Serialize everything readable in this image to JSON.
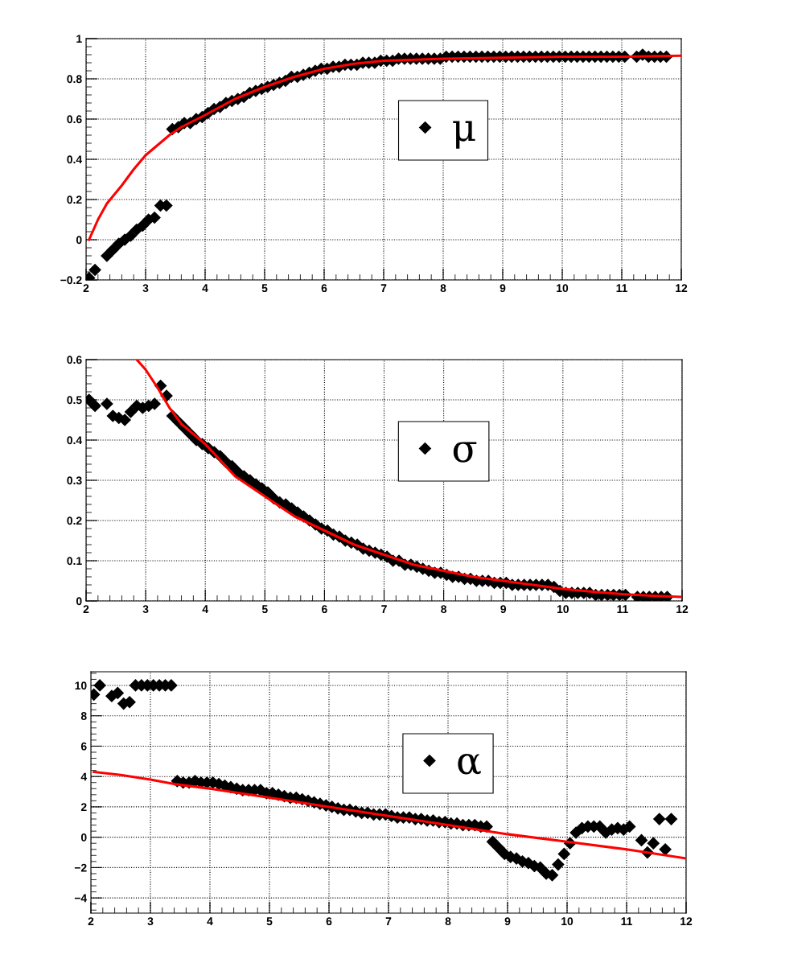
{
  "chart_data": [
    {
      "type": "scatter",
      "xlim": [
        2,
        12
      ],
      "xticks": [
        2,
        3,
        4,
        5,
        6,
        7,
        8,
        9,
        10,
        11,
        12
      ],
      "ylim": [
        -0.2,
        1
      ],
      "yticks": [
        {
          "value": -0.2,
          "label": "−0.2"
        },
        0,
        0.2,
        0.4,
        0.6,
        0.8,
        1
      ],
      "grid": true,
      "legend": "right",
      "series": [
        {
          "name": "μ",
          "color": "#000000",
          "marker": "diamond",
          "x": [
            2.05,
            2.15,
            2.35,
            2.45,
            2.55,
            2.65,
            2.75,
            2.85,
            2.95,
            3.05,
            3.15,
            3.25,
            3.35,
            3.45,
            3.55,
            3.65,
            3.75,
            3.85,
            3.95,
            4.05,
            4.15,
            4.25,
            4.35,
            4.45,
            4.55,
            4.65,
            4.75,
            4.85,
            4.95,
            5.05,
            5.15,
            5.25,
            5.35,
            5.45,
            5.55,
            5.65,
            5.75,
            5.85,
            5.95,
            6.05,
            6.15,
            6.25,
            6.35,
            6.45,
            6.55,
            6.65,
            6.75,
            6.85,
            6.95,
            7.05,
            7.15,
            7.25,
            7.35,
            7.45,
            7.55,
            7.65,
            7.75,
            7.85,
            7.95,
            8.05,
            8.15,
            8.25,
            8.35,
            8.45,
            8.55,
            8.65,
            8.75,
            8.85,
            8.95,
            9.05,
            9.15,
            9.25,
            9.35,
            9.45,
            9.55,
            9.65,
            9.75,
            9.85,
            9.95,
            10.05,
            10.15,
            10.25,
            10.35,
            10.45,
            10.55,
            10.65,
            10.75,
            10.85,
            10.95,
            11.05,
            11.25,
            11.35,
            11.45,
            11.55,
            11.65,
            11.75
          ],
          "values": [
            -0.19,
            -0.15,
            -0.08,
            -0.05,
            -0.02,
            0.0,
            0.02,
            0.05,
            0.07,
            0.1,
            0.11,
            0.17,
            0.17,
            0.55,
            0.56,
            0.58,
            0.58,
            0.6,
            0.61,
            0.63,
            0.65,
            0.66,
            0.68,
            0.69,
            0.7,
            0.71,
            0.73,
            0.74,
            0.75,
            0.76,
            0.77,
            0.78,
            0.79,
            0.81,
            0.81,
            0.82,
            0.83,
            0.84,
            0.85,
            0.85,
            0.86,
            0.86,
            0.87,
            0.87,
            0.87,
            0.88,
            0.88,
            0.88,
            0.89,
            0.89,
            0.89,
            0.9,
            0.9,
            0.9,
            0.9,
            0.9,
            0.9,
            0.9,
            0.9,
            0.91,
            0.91,
            0.91,
            0.91,
            0.91,
            0.91,
            0.91,
            0.91,
            0.91,
            0.91,
            0.91,
            0.91,
            0.91,
            0.91,
            0.91,
            0.91,
            0.91,
            0.91,
            0.91,
            0.91,
            0.91,
            0.91,
            0.91,
            0.91,
            0.91,
            0.91,
            0.91,
            0.91,
            0.91,
            0.91,
            0.91,
            0.91,
            0.92,
            0.91,
            0.91,
            0.91,
            0.91
          ]
        },
        {
          "type": "line",
          "color": "#ff0000",
          "line_style": "solid",
          "x": [
            2.05,
            2.2,
            2.35,
            2.6,
            2.8,
            3.0,
            3.4,
            3.6,
            4.0,
            4.5,
            5.0,
            5.5,
            6.0,
            6.5,
            7.0,
            8.0,
            9.0,
            10.0,
            11.0,
            12.0
          ],
          "values": [
            0.0,
            0.1,
            0.18,
            0.27,
            0.35,
            0.42,
            0.52,
            0.56,
            0.62,
            0.7,
            0.76,
            0.81,
            0.85,
            0.875,
            0.89,
            0.9,
            0.905,
            0.91,
            0.91,
            0.915
          ]
        }
      ]
    },
    {
      "type": "scatter",
      "xlim": [
        2,
        12
      ],
      "xticks": [
        2,
        3,
        4,
        5,
        6,
        7,
        8,
        9,
        10,
        11,
        12
      ],
      "ylim": [
        0,
        0.6
      ],
      "yticks": [
        0,
        0.1,
        0.2,
        0.3,
        0.4,
        0.5,
        0.6
      ],
      "grid": true,
      "legend": "right",
      "series": [
        {
          "name": "σ",
          "color": "#000000",
          "marker": "diamond",
          "x": [
            2.05,
            2.15,
            2.35,
            2.45,
            2.55,
            2.65,
            2.75,
            2.85,
            2.95,
            3.05,
            3.15,
            3.25,
            3.35,
            3.45,
            3.55,
            3.65,
            3.75,
            3.85,
            3.95,
            4.05,
            4.15,
            4.25,
            4.35,
            4.45,
            4.55,
            4.65,
            4.75,
            4.85,
            4.95,
            5.05,
            5.15,
            5.25,
            5.35,
            5.45,
            5.55,
            5.65,
            5.75,
            5.85,
            5.95,
            6.05,
            6.15,
            6.25,
            6.35,
            6.45,
            6.55,
            6.65,
            6.75,
            6.85,
            6.95,
            7.05,
            7.15,
            7.25,
            7.35,
            7.45,
            7.55,
            7.65,
            7.75,
            7.85,
            7.95,
            8.05,
            8.15,
            8.25,
            8.35,
            8.45,
            8.55,
            8.65,
            8.75,
            8.85,
            8.95,
            9.05,
            9.15,
            9.25,
            9.35,
            9.45,
            9.55,
            9.65,
            9.75,
            9.85,
            9.95,
            10.05,
            10.15,
            10.25,
            10.35,
            10.45,
            10.55,
            10.65,
            10.75,
            10.85,
            10.95,
            11.05,
            11.25,
            11.35,
            11.45,
            11.55,
            11.65,
            11.75
          ],
          "values": [
            0.5,
            0.485,
            0.49,
            0.46,
            0.455,
            0.45,
            0.47,
            0.485,
            0.48,
            0.485,
            0.49,
            0.535,
            0.51,
            0.46,
            0.445,
            0.43,
            0.415,
            0.4,
            0.39,
            0.38,
            0.37,
            0.36,
            0.345,
            0.335,
            0.32,
            0.31,
            0.3,
            0.29,
            0.28,
            0.27,
            0.255,
            0.245,
            0.24,
            0.23,
            0.22,
            0.21,
            0.2,
            0.19,
            0.18,
            0.175,
            0.165,
            0.16,
            0.15,
            0.145,
            0.14,
            0.13,
            0.125,
            0.12,
            0.115,
            0.11,
            0.1,
            0.1,
            0.09,
            0.09,
            0.085,
            0.08,
            0.075,
            0.07,
            0.07,
            0.065,
            0.06,
            0.06,
            0.055,
            0.055,
            0.05,
            0.05,
            0.05,
            0.045,
            0.045,
            0.045,
            0.04,
            0.04,
            0.04,
            0.04,
            0.04,
            0.04,
            0.04,
            0.035,
            0.025,
            0.02,
            0.02,
            0.02,
            0.02,
            0.02,
            0.015,
            0.015,
            0.015,
            0.015,
            0.015,
            0.015,
            0.01,
            0.01,
            0.01,
            0.01,
            0.01,
            0.01
          ]
        },
        {
          "type": "line",
          "color": "#ff0000",
          "line_style": "solid",
          "x": [
            2.85,
            3.0,
            3.2,
            3.4,
            3.6,
            4.0,
            4.5,
            5.0,
            5.5,
            6.0,
            6.5,
            7.0,
            7.5,
            8.0,
            8.5,
            9.0,
            9.5,
            10.0,
            10.5,
            11.0,
            11.5,
            12.0
          ],
          "values": [
            0.6,
            0.575,
            0.53,
            0.48,
            0.44,
            0.39,
            0.31,
            0.26,
            0.21,
            0.175,
            0.14,
            0.115,
            0.09,
            0.075,
            0.06,
            0.05,
            0.04,
            0.03,
            0.023,
            0.017,
            0.013,
            0.01
          ]
        }
      ]
    },
    {
      "type": "scatter",
      "xlim": [
        2,
        12
      ],
      "xticks": [
        2,
        3,
        4,
        5,
        6,
        7,
        8,
        9,
        10,
        11,
        12
      ],
      "ylim": [
        -5,
        10.9
      ],
      "yticks": [
        {
          "value": -4,
          "label": "−4"
        },
        {
          "value": -2,
          "label": "−2"
        },
        0,
        2,
        4,
        6,
        8,
        10
      ],
      "grid": true,
      "legend": "right",
      "series": [
        {
          "name": "α",
          "color": "#000000",
          "marker": "diamond",
          "x": [
            2.05,
            2.15,
            2.35,
            2.45,
            2.55,
            2.65,
            2.75,
            2.85,
            2.95,
            3.05,
            3.15,
            3.25,
            3.35,
            3.45,
            3.55,
            3.65,
            3.75,
            3.85,
            3.95,
            4.05,
            4.15,
            4.25,
            4.35,
            4.45,
            4.55,
            4.65,
            4.75,
            4.85,
            4.95,
            5.05,
            5.15,
            5.25,
            5.35,
            5.45,
            5.55,
            5.65,
            5.75,
            5.85,
            5.95,
            6.05,
            6.15,
            6.25,
            6.35,
            6.45,
            6.55,
            6.65,
            6.75,
            6.85,
            6.95,
            7.05,
            7.15,
            7.25,
            7.35,
            7.45,
            7.55,
            7.65,
            7.75,
            7.85,
            7.95,
            8.05,
            8.15,
            8.25,
            8.35,
            8.45,
            8.55,
            8.65,
            8.75,
            8.85,
            8.95,
            9.05,
            9.15,
            9.25,
            9.35,
            9.45,
            9.55,
            9.65,
            9.75,
            9.85,
            9.95,
            10.05,
            10.15,
            10.25,
            10.35,
            10.45,
            10.55,
            10.65,
            10.75,
            10.85,
            10.95,
            11.05,
            11.25,
            11.35,
            11.45,
            11.55,
            11.65,
            11.75
          ],
          "values": [
            9.4,
            10,
            9.3,
            9.5,
            8.8,
            8.9,
            10,
            10,
            10,
            10,
            10,
            10,
            10,
            3.7,
            3.6,
            3.6,
            3.7,
            3.6,
            3.6,
            3.6,
            3.5,
            3.4,
            3.3,
            3.2,
            3.1,
            3.1,
            3.1,
            3.1,
            2.9,
            2.9,
            2.8,
            2.7,
            2.6,
            2.6,
            2.5,
            2.4,
            2.3,
            2.2,
            2.1,
            2.0,
            1.9,
            1.8,
            1.8,
            1.7,
            1.6,
            1.6,
            1.5,
            1.5,
            1.5,
            1.4,
            1.3,
            1.3,
            1.3,
            1.2,
            1.2,
            1.1,
            1.1,
            1.0,
            1.0,
            0.9,
            0.9,
            0.8,
            0.8,
            0.8,
            0.7,
            0.7,
            -0.3,
            -0.7,
            -1.1,
            -1.3,
            -1.4,
            -1.6,
            -1.7,
            -1.9,
            -2.0,
            -2.4,
            -2.5,
            -1.8,
            -1.1,
            -0.4,
            0.3,
            0.6,
            0.7,
            0.7,
            0.7,
            0.3,
            0.5,
            0.6,
            0.5,
            0.7,
            -0.2,
            -1.0,
            -0.4,
            1.2,
            -0.8,
            1.2
          ]
        },
        {
          "type": "line",
          "color": "#ff0000",
          "line_style": "solid",
          "x": [
            2.05,
            2.5,
            3.0,
            3.4,
            4.0,
            5.0,
            6.0,
            7.0,
            8.0,
            9.0,
            10.0,
            11.0,
            12.0
          ],
          "values": [
            4.3,
            4.1,
            3.8,
            3.5,
            3.2,
            2.6,
            2.0,
            1.4,
            0.8,
            0.2,
            -0.3,
            -0.8,
            -1.4
          ]
        }
      ]
    }
  ]
}
